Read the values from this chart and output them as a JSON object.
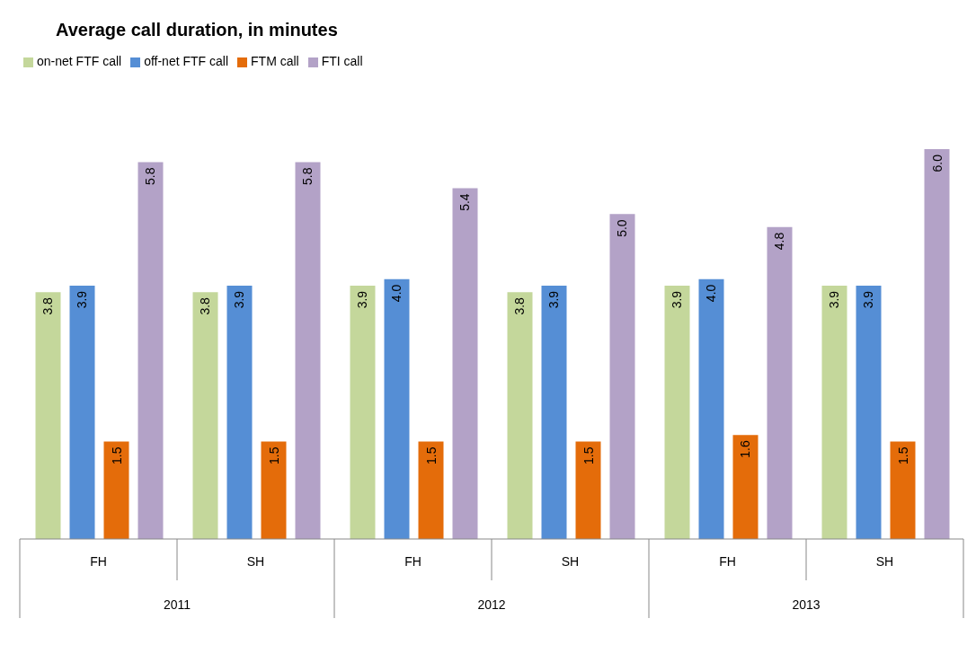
{
  "chart_data": {
    "type": "bar",
    "title": "Average call duration, in minutes",
    "categories": [
      "FH",
      "SH",
      "FH",
      "SH",
      "FH",
      "SH"
    ],
    "series": [
      {
        "name": "on-net FTF call",
        "color": "#c4d79b",
        "values": [
          3.8,
          3.8,
          3.9,
          3.8,
          3.9,
          3.9
        ],
        "value_labels": [
          "3.8",
          "3.8",
          "3.9",
          "3.8",
          "3.9",
          "3.9"
        ]
      },
      {
        "name": "off-net FTF call",
        "color": "#558ed5",
        "values": [
          3.9,
          3.9,
          4.0,
          3.9,
          4.0,
          3.9
        ],
        "value_labels": [
          "3.9",
          "3.9",
          "4.0",
          "3.9",
          "4.0",
          "3.9"
        ]
      },
      {
        "name": "FTM call",
        "color": "#e46c0a",
        "values": [
          1.5,
          1.5,
          1.5,
          1.5,
          1.6,
          1.5
        ],
        "value_labels": [
          "1.5",
          "1.5",
          "1.5",
          "1.5",
          "1.6",
          "1.5"
        ]
      },
      {
        "name": "FTI call",
        "color": "#b3a2c7",
        "values": [
          5.8,
          5.8,
          5.4,
          5.0,
          4.8,
          6.0
        ],
        "value_labels": [
          "5.8",
          "5.8",
          "5.4",
          "5.0",
          "4.8",
          "6.0"
        ]
      }
    ],
    "annotations": [
      "2011",
      "2012",
      "2013"
    ],
    "legend": "top left"
  }
}
